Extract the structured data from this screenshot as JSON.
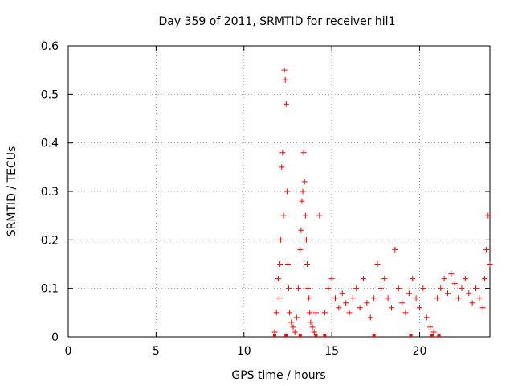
{
  "chart_data": {
    "type": "scatter",
    "title": "Day 359 of 2011, SRMTID for receiver hil1",
    "xlabel": "GPS time / hours",
    "ylabel": "SRMTID / TECUs",
    "xlim": [
      0,
      24
    ],
    "ylim": [
      0,
      0.6
    ],
    "x_ticks": [
      0,
      5,
      10,
      15,
      20
    ],
    "x_tick_labels": [
      "0",
      "5",
      "10",
      "15",
      "20"
    ],
    "y_ticks": [
      0,
      0.1,
      0.2,
      0.3,
      0.4,
      0.5,
      0.6
    ],
    "y_tick_labels": [
      "0",
      "0.1",
      "0.2",
      "0.3",
      "0.4",
      "0.5",
      "0.6"
    ],
    "grid": true,
    "marker": "plus",
    "series": [
      {
        "name": "SRMTID",
        "color": "#ff0000",
        "x": [
          11.75,
          11.85,
          11.95,
          12.0,
          12.05,
          12.1,
          12.15,
          12.2,
          12.25,
          12.3,
          12.35,
          12.4,
          12.45,
          12.5,
          12.55,
          12.6,
          12.7,
          12.8,
          12.9,
          13.0,
          13.1,
          13.2,
          13.25,
          13.3,
          13.35,
          13.4,
          13.45,
          13.5,
          13.55,
          13.6,
          13.65,
          13.7,
          13.75,
          13.8,
          13.9,
          14.0,
          14.1,
          14.3,
          14.6,
          14.8,
          15.0,
          15.2,
          15.4,
          15.6,
          15.8,
          16.0,
          16.2,
          16.4,
          16.6,
          16.8,
          17.0,
          17.2,
          17.4,
          17.6,
          17.8,
          18.0,
          18.2,
          18.4,
          18.6,
          18.8,
          19.0,
          19.2,
          19.4,
          19.6,
          19.8,
          20.0,
          20.2,
          20.4,
          20.6,
          20.8,
          21.0,
          21.2,
          21.4,
          21.6,
          21.8,
          22.0,
          22.2,
          22.4,
          22.6,
          22.8,
          23.0,
          23.2,
          23.4,
          23.6,
          23.7,
          23.8,
          23.9,
          24.0
        ],
        "y": [
          0.01,
          0.05,
          0.12,
          0.08,
          0.15,
          0.2,
          0.35,
          0.38,
          0.25,
          0.55,
          0.53,
          0.48,
          0.3,
          0.15,
          0.1,
          0.05,
          0.03,
          0.02,
          0.01,
          0.04,
          0.1,
          0.18,
          0.22,
          0.28,
          0.3,
          0.38,
          0.32,
          0.25,
          0.2,
          0.15,
          0.1,
          0.08,
          0.05,
          0.03,
          0.02,
          0.01,
          0.05,
          0.25,
          0.05,
          0.1,
          0.12,
          0.08,
          0.06,
          0.09,
          0.07,
          0.05,
          0.08,
          0.1,
          0.06,
          0.12,
          0.07,
          0.04,
          0.08,
          0.15,
          0.1,
          0.12,
          0.08,
          0.06,
          0.18,
          0.1,
          0.07,
          0.05,
          0.09,
          0.12,
          0.08,
          0.06,
          0.1,
          0.04,
          0.02,
          0.01,
          0.08,
          0.1,
          0.12,
          0.09,
          0.13,
          0.11,
          0.08,
          0.1,
          0.12,
          0.09,
          0.07,
          0.1,
          0.08,
          0.06,
          0.12,
          0.18,
          0.25,
          0.15
        ]
      }
    ],
    "zero_markers_x": [
      11.75,
      12.4,
      13.2,
      14.1,
      14.6,
      17.4,
      19.5,
      20.7,
      21.1
    ]
  }
}
